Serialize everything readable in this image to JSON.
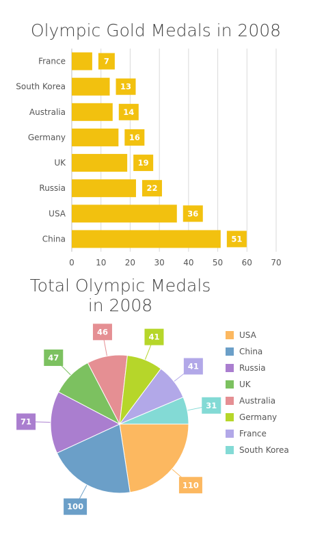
{
  "chart_data": [
    {
      "type": "bar",
      "orientation": "horizontal",
      "title": "Olympic Gold Medals in 2008",
      "categories": [
        "France",
        "South Korea",
        "Australia",
        "Germany",
        "UK",
        "Russia",
        "USA",
        "China"
      ],
      "values": [
        7,
        13,
        14,
        16,
        19,
        22,
        36,
        51
      ],
      "xlim": [
        0,
        70
      ],
      "xticks": [
        "0",
        "10",
        "20",
        "30",
        "40",
        "50",
        "60",
        "70"
      ],
      "grid": "vertical",
      "color": "#f2c10f"
    },
    {
      "type": "pie",
      "title_lines": [
        "Total Olympic Medals",
        "in 2008"
      ],
      "labels": [
        "USA",
        "China",
        "Russia",
        "UK",
        "Australia",
        "Germany",
        "France",
        "South Korea"
      ],
      "values": [
        110,
        100,
        71,
        47,
        46,
        41,
        41,
        31
      ],
      "colors": [
        "#fcb860",
        "#6b9fc8",
        "#aa7ecf",
        "#7cc160",
        "#e58f93",
        "#b6d62a",
        "#b2a8e8",
        "#83dad5"
      ],
      "legend": "right"
    }
  ]
}
